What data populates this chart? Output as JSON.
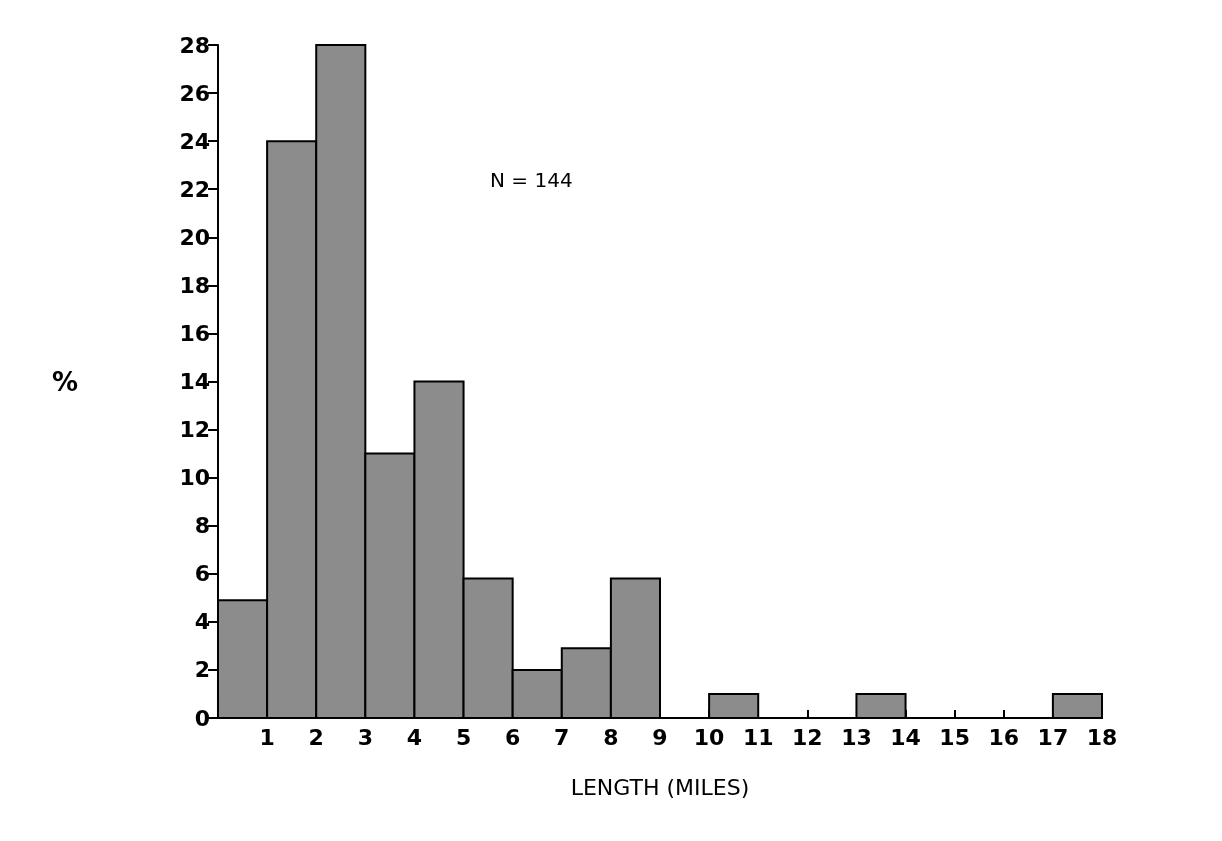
{
  "chart_data": {
    "type": "histogram",
    "xlabel": "LENGTH (MILES)",
    "ylabel": "%",
    "annotations": [
      "N = 144"
    ],
    "bins": [
      0,
      1,
      2,
      3,
      4,
      5,
      6,
      7,
      8,
      9,
      10,
      11,
      12,
      13,
      14,
      15,
      16,
      17,
      18
    ],
    "values": [
      4.9,
      24,
      28,
      11,
      14,
      5.8,
      2,
      2.9,
      5.8,
      0,
      1,
      0,
      0,
      1,
      0,
      0,
      0,
      1
    ],
    "color": "#8c8c8c",
    "xlim": [
      0,
      18
    ],
    "xticks": [
      1,
      2,
      3,
      4,
      5,
      6,
      7,
      8,
      9,
      10,
      11,
      12,
      13,
      14,
      15,
      16,
      17,
      18
    ],
    "ylim": [
      0,
      28
    ],
    "yticks": [
      0,
      2,
      4,
      6,
      8,
      10,
      12,
      14,
      16,
      18,
      20,
      22,
      24,
      26,
      28
    ],
    "grid": false
  }
}
